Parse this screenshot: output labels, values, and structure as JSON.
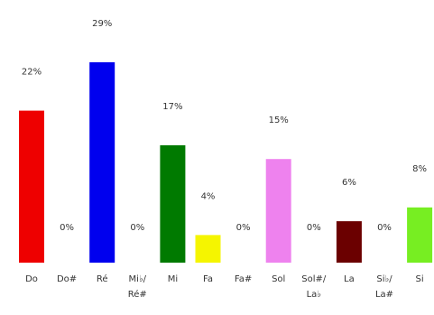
{
  "chart_data": {
    "type": "bar",
    "title": "",
    "xlabel": "",
    "ylabel": "",
    "ylim": [
      0,
      29
    ],
    "grid": false,
    "legend": "none",
    "categories": [
      [
        "Do"
      ],
      [
        "Do#"
      ],
      [
        "Ré"
      ],
      [
        "Mi♭/",
        "Ré#"
      ],
      [
        "Mi"
      ],
      [
        "Fa"
      ],
      [
        "Fa#"
      ],
      [
        "Sol"
      ],
      [
        "Sol#/",
        "La♭"
      ],
      [
        "La"
      ],
      [
        "Si♭/",
        "La#"
      ],
      [
        "Si"
      ]
    ],
    "values": [
      22,
      0,
      29,
      0,
      17,
      4,
      0,
      15,
      0,
      6,
      0,
      8
    ],
    "value_labels": [
      "22%",
      "0%",
      "29%",
      "0%",
      "17%",
      "4%",
      "0%",
      "15%",
      "0%",
      "6%",
      "0%",
      "8%"
    ],
    "colors": [
      "#ee0000",
      "#ffffff",
      "#0000ee",
      "#ffffff",
      "#007a00",
      "#f5f500",
      "#ffffff",
      "#ee82ee",
      "#ffffff",
      "#6b0000",
      "#ffffff",
      "#77ee22"
    ]
  }
}
